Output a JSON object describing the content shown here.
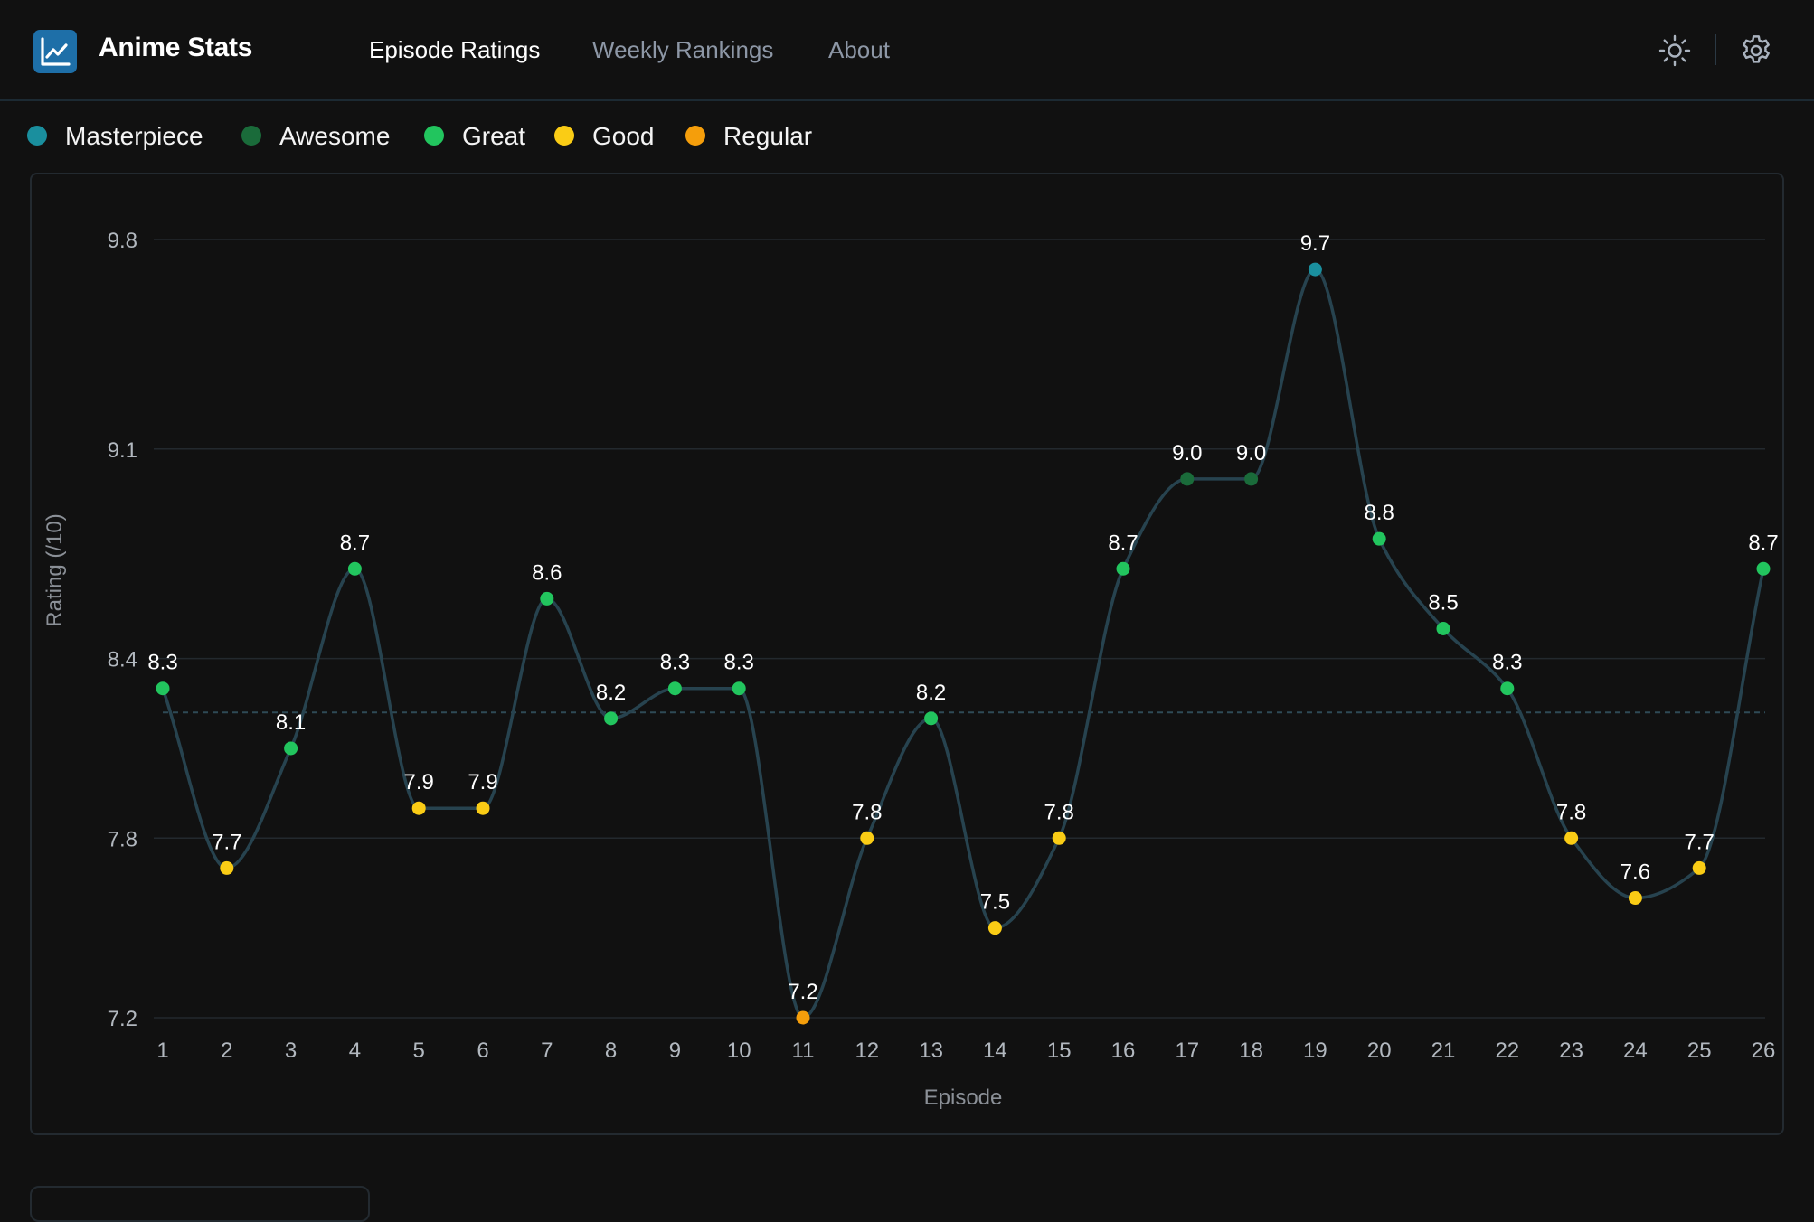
{
  "header": {
    "app_title": "Anime Stats",
    "nav": [
      {
        "label": "Episode Ratings",
        "active": true
      },
      {
        "label": "Weekly Rankings",
        "active": false
      },
      {
        "label": "About",
        "active": false
      }
    ],
    "icons": {
      "logo": "line-chart-icon",
      "theme": "sun-icon",
      "settings": "gear-icon"
    }
  },
  "legend": [
    {
      "label": "Masterpiece",
      "color": "#1a8f9e"
    },
    {
      "label": "Awesome",
      "color": "#1a6b3a"
    },
    {
      "label": "Great",
      "color": "#22c55e"
    },
    {
      "label": "Good",
      "color": "#facc15"
    },
    {
      "label": "Regular",
      "color": "#f59e0b"
    }
  ],
  "chart_data": {
    "type": "line",
    "xlabel": "Episode",
    "ylabel": "Rating (/10)",
    "ylim": [
      7.2,
      9.8
    ],
    "yticks": [
      "7.2",
      "7.8",
      "8.4",
      "9.1",
      "9.8"
    ],
    "average_line": 8.22,
    "line_color": "#27434f",
    "grid": true,
    "x": [
      1,
      2,
      3,
      4,
      5,
      6,
      7,
      8,
      9,
      10,
      11,
      12,
      13,
      14,
      15,
      16,
      17,
      18,
      19,
      20,
      21,
      22,
      23,
      24,
      25,
      26
    ],
    "series": [
      {
        "values": [
          8.3,
          7.7,
          8.1,
          8.7,
          7.9,
          7.9,
          8.6,
          8.2,
          8.3,
          8.3,
          7.2,
          7.8,
          8.2,
          7.5,
          7.8,
          8.7,
          9.0,
          9.0,
          9.7,
          8.8,
          8.5,
          8.3,
          7.8,
          7.6,
          7.7,
          8.7
        ],
        "labels": [
          "8.3",
          "7.7",
          "8.1",
          "8.7",
          "7.9",
          "7.9",
          "8.6",
          "8.2",
          "8.3",
          "8.3",
          "7.2",
          "7.8",
          "8.2",
          "7.5",
          "7.8",
          "8.7",
          "9.0",
          "9.0",
          "9.7",
          "8.8",
          "8.5",
          "8.3",
          "7.8",
          "7.6",
          "7.7",
          "8.7"
        ],
        "categories": [
          "Great",
          "Good",
          "Great",
          "Great",
          "Good",
          "Good",
          "Great",
          "Great",
          "Great",
          "Great",
          "Regular",
          "Good",
          "Great",
          "Good",
          "Good",
          "Great",
          "Awesome",
          "Awesome",
          "Masterpiece",
          "Great",
          "Great",
          "Great",
          "Good",
          "Good",
          "Good",
          "Great"
        ]
      }
    ]
  }
}
